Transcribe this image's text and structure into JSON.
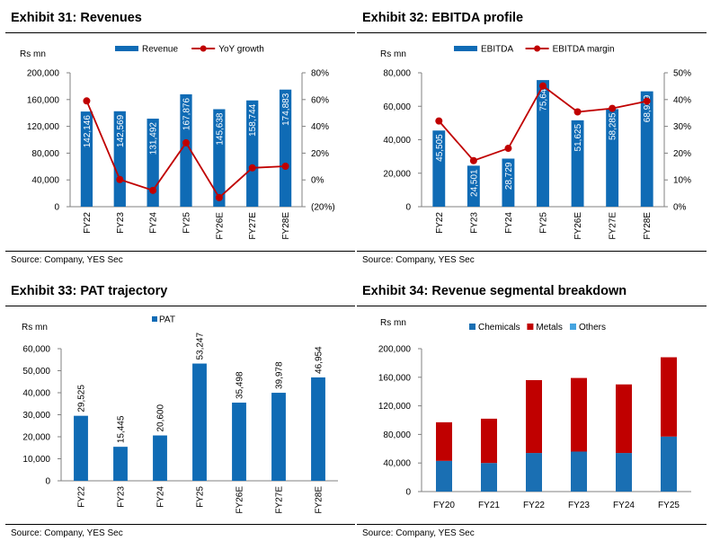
{
  "panels": [
    {
      "title": "Exhibit 31: Revenues",
      "source": "Source: Company, YES Sec"
    },
    {
      "title": "Exhibit 32: EBITDA profile",
      "source": "Source: Company, YES Sec"
    },
    {
      "title": "Exhibit 33: PAT trajectory",
      "source": "Source: Company, YES Sec"
    },
    {
      "title": "Exhibit 34: Revenue segmental breakdown",
      "source": "Source: Company, YES Sec"
    }
  ],
  "colors": {
    "bar": "#0f6bb5",
    "line": "#c00000",
    "chemicals": "#1a6fb3",
    "metals": "#c00000",
    "others": "#45a4e0"
  },
  "chart_data": [
    {
      "type": "bar+line",
      "title": "Exhibit 31: Revenues",
      "ylabel": "Rs mn",
      "categories": [
        "FY22",
        "FY23",
        "FY24",
        "FY25",
        "FY26E",
        "FY27E",
        "FY28E"
      ],
      "series": [
        {
          "name": "Revenue",
          "type": "bar",
          "axis": "left",
          "values": [
            142146,
            142569,
            131492,
            167876,
            145638,
            158744,
            174883
          ],
          "labels": [
            "142,146",
            "142,569",
            "131,492",
            "167,876",
            "145,638",
            "158,744",
            "174,883"
          ]
        },
        {
          "name": "YoY growth",
          "type": "line",
          "axis": "right",
          "values": [
            59,
            0.3,
            -7.8,
            27.7,
            -13.2,
            9.0,
            10.2
          ]
        }
      ],
      "ylim": [
        0,
        200000
      ],
      "yticks": [
        0,
        40000,
        80000,
        120000,
        160000,
        200000
      ],
      "yticklabels": [
        "0",
        "40,000",
        "80,000",
        "120,000",
        "160,000",
        "200,000"
      ],
      "y2lim": [
        -20,
        80
      ],
      "y2ticks": [
        -20,
        0,
        20,
        40,
        60,
        80
      ],
      "y2ticklabels": [
        "(20%)",
        "0%",
        "20%",
        "40%",
        "60%",
        "80%"
      ],
      "legend": "top"
    },
    {
      "type": "bar+line",
      "title": "Exhibit 32: EBITDA profile",
      "ylabel": "Rs mn",
      "categories": [
        "FY22",
        "FY23",
        "FY24",
        "FY25",
        "FY26E",
        "FY27E",
        "FY28E"
      ],
      "series": [
        {
          "name": "EBITDA",
          "type": "bar",
          "axis": "left",
          "values": [
            45505,
            24501,
            28729,
            75646,
            51625,
            58285,
            68929
          ],
          "labels": [
            "45,505",
            "24,501",
            "28,729",
            "75,646",
            "51,625",
            "58,285",
            "68,929"
          ]
        },
        {
          "name": "EBITDA margin",
          "type": "line",
          "axis": "right",
          "values": [
            32.0,
            17.2,
            21.8,
            45.1,
            35.4,
            36.7,
            39.4
          ]
        }
      ],
      "ylim": [
        0,
        80000
      ],
      "yticks": [
        0,
        20000,
        40000,
        60000,
        80000
      ],
      "yticklabels": [
        "0",
        "20,000",
        "40,000",
        "60,000",
        "80,000"
      ],
      "y2lim": [
        0,
        50
      ],
      "y2ticks": [
        0,
        10,
        20,
        30,
        40,
        50
      ],
      "y2ticklabels": [
        "0%",
        "10%",
        "20%",
        "30%",
        "40%",
        "50%"
      ],
      "legend": "top"
    },
    {
      "type": "bar",
      "title": "Exhibit 33: PAT trajectory",
      "ylabel": "Rs mn",
      "categories": [
        "FY22",
        "FY23",
        "FY24",
        "FY25",
        "FY26E",
        "FY27E",
        "FY28E"
      ],
      "series": [
        {
          "name": "PAT",
          "type": "bar",
          "axis": "left",
          "values": [
            29525,
            15445,
            20600,
            53247,
            35498,
            39978,
            46954
          ],
          "labels": [
            "29,525",
            "15,445",
            "20,600",
            "53,247",
            "35,498",
            "39,978",
            "46,954"
          ]
        }
      ],
      "ylim": [
        0,
        60000
      ],
      "yticks": [
        0,
        10000,
        20000,
        30000,
        40000,
        50000,
        60000
      ],
      "yticklabels": [
        "0",
        "10,000",
        "20,000",
        "30,000",
        "40,000",
        "50,000",
        "60,000"
      ],
      "legend": "top"
    },
    {
      "type": "stacked-bar",
      "title": "Exhibit 34: Revenue segmental breakdown",
      "ylabel": "Rs mn",
      "categories": [
        "FY20",
        "FY21",
        "FY22",
        "FY23",
        "FY24",
        "FY25"
      ],
      "series": [
        {
          "name": "Chemicals",
          "values": [
            43000,
            40000,
            54000,
            56000,
            54000,
            77000
          ]
        },
        {
          "name": "Metals",
          "values": [
            54000,
            62000,
            102000,
            103000,
            96000,
            111000
          ]
        },
        {
          "name": "Others",
          "values": [
            0,
            0,
            0,
            0,
            0,
            0
          ]
        }
      ],
      "ylim": [
        0,
        200000
      ],
      "yticks": [
        0,
        40000,
        80000,
        120000,
        160000,
        200000
      ],
      "yticklabels": [
        "0",
        "40,000",
        "80,000",
        "120,000",
        "160,000",
        "200,000"
      ],
      "legend": "top"
    }
  ]
}
